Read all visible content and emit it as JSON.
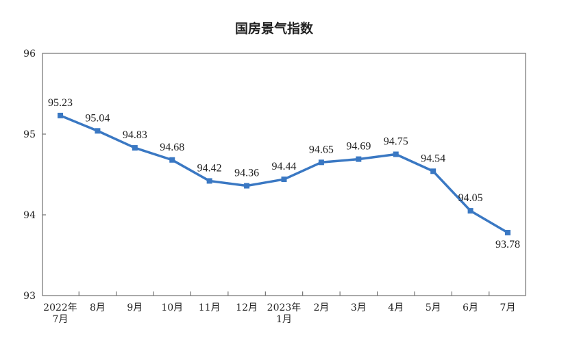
{
  "chart_data": {
    "type": "line",
    "title": "国房景气指数",
    "xlabel": "",
    "ylabel": "",
    "ylim": [
      93,
      96
    ],
    "y_ticks": [
      "93",
      "94",
      "95",
      "96"
    ],
    "categories": [
      [
        "2022年",
        "7月"
      ],
      [
        "8月"
      ],
      [
        "9月"
      ],
      [
        "10月"
      ],
      [
        "11月"
      ],
      [
        "12月"
      ],
      [
        "2023年",
        "1月"
      ],
      [
        "2月"
      ],
      [
        "3月"
      ],
      [
        "4月"
      ],
      [
        "5月"
      ],
      [
        "6月"
      ],
      [
        "7月"
      ]
    ],
    "series": [
      {
        "values": [
          95.23,
          95.04,
          94.83,
          94.68,
          94.42,
          94.36,
          94.44,
          94.65,
          94.69,
          94.75,
          94.54,
          94.05,
          93.78
        ],
        "labels": [
          "95.23",
          "95.04",
          "94.83",
          "94.68",
          "94.42",
          "94.36",
          "94.44",
          "94.65",
          "94.69",
          "94.75",
          "94.54",
          "94.05",
          "93.78"
        ],
        "color": "#3a78c3"
      }
    ],
    "grid": false,
    "legend": "none",
    "colors": {
      "line": "#3a78c3",
      "axis": "#555555",
      "text": "#222222"
    }
  }
}
